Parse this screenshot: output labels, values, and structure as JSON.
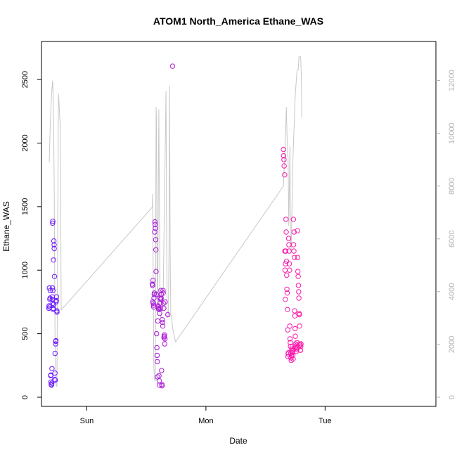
{
  "chart_data": {
    "type": "scatter",
    "title": "ATOM1 North_America Ethane_WAS",
    "xlabel": "Date",
    "ylabel": "Ethane_WAS",
    "x_tick_labels": [
      "Sun",
      "Mon",
      "Tue"
    ],
    "x_ticks_days": [
      1,
      2,
      3
    ],
    "xlim_days": [
      0.62,
      3.93
    ],
    "ylim": [
      0,
      2650
    ],
    "y_ticks": [
      0,
      500,
      1000,
      1500,
      2000,
      2500
    ],
    "y2lim": [
      0,
      13000
    ],
    "y2_ticks": [
      0,
      2000,
      4000,
      6000,
      8000,
      10000,
      12000
    ],
    "y2_label": "",
    "line_color": "#c8c8c8",
    "point_gradient": {
      "from": "#6a1aff",
      "to": "#ff1aa8"
    },
    "secondary_line": [
      [
        0.685,
        8900
      ],
      [
        0.695,
        10500
      ],
      [
        0.705,
        11500
      ],
      [
        0.713,
        12000
      ],
      [
        0.72,
        11200
      ],
      [
        0.727,
        8000
      ],
      [
        0.733,
        2500
      ],
      [
        0.74,
        500
      ],
      [
        0.75,
        400
      ],
      [
        0.757,
        7000
      ],
      [
        0.763,
        11500
      ],
      [
        0.769,
        11000
      ],
      [
        0.774,
        10500
      ],
      [
        0.778,
        10400
      ],
      [
        0.785,
        3300
      ],
      [
        1.55,
        7200
      ],
      [
        1.553,
        7700
      ],
      [
        1.557,
        5000
      ],
      [
        1.562,
        1300
      ],
      [
        1.567,
        700
      ],
      [
        1.575,
        600
      ],
      [
        1.582,
        11000
      ],
      [
        1.585,
        10500
      ],
      [
        1.59,
        5000
      ],
      [
        1.595,
        3300
      ],
      [
        1.605,
        10900
      ],
      [
        1.61,
        7000
      ],
      [
        1.615,
        3200
      ],
      [
        1.62,
        3000
      ],
      [
        1.64,
        3500
      ],
      [
        1.665,
        11600
      ],
      [
        1.67,
        6000
      ],
      [
        1.675,
        3000
      ],
      [
        1.685,
        3100
      ],
      [
        1.69,
        5500
      ],
      [
        1.695,
        11800
      ],
      [
        1.7,
        5500
      ],
      [
        1.705,
        3200
      ],
      [
        1.725,
        2500
      ],
      [
        1.745,
        2100
      ],
      [
        2.65,
        8000
      ],
      [
        2.665,
        9500
      ],
      [
        2.675,
        11000
      ],
      [
        2.68,
        10000
      ],
      [
        2.69,
        9000
      ],
      [
        2.695,
        6500
      ],
      [
        2.705,
        9500
      ],
      [
        2.71,
        6000
      ],
      [
        2.715,
        5500
      ],
      [
        2.73,
        9000
      ],
      [
        2.75,
        11500
      ],
      [
        2.76,
        12100
      ],
      [
        2.765,
        12400
      ],
      [
        2.775,
        12400
      ],
      [
        2.78,
        12900
      ],
      [
        2.79,
        12900
      ],
      [
        2.795,
        12900
      ],
      [
        2.8,
        12200
      ],
      [
        2.805,
        10600
      ]
    ],
    "series": [
      {
        "name": "Ethane_WAS",
        "points": [
          [
            0.682,
            700
          ],
          [
            0.684,
            720
          ],
          [
            0.686,
            860
          ],
          [
            0.688,
            710
          ],
          [
            0.69,
            770
          ],
          [
            0.692,
            780
          ],
          [
            0.694,
            840
          ],
          [
            0.697,
            170
          ],
          [
            0.699,
            175
          ],
          [
            0.7,
            120
          ],
          [
            0.702,
            100
          ],
          [
            0.704,
            95
          ],
          [
            0.706,
            110
          ],
          [
            0.708,
            225
          ],
          [
            0.71,
            770
          ],
          [
            0.711,
            790
          ],
          [
            0.712,
            860
          ],
          [
            0.713,
            1370
          ],
          [
            0.715,
            1385
          ],
          [
            0.716,
            840
          ],
          [
            0.717,
            740
          ],
          [
            0.719,
            700
          ],
          [
            0.72,
            690
          ],
          [
            0.721,
            1080
          ],
          [
            0.722,
            730
          ],
          [
            0.724,
            1230
          ],
          [
            0.726,
            1200
          ],
          [
            0.727,
            1170
          ],
          [
            0.729,
            950
          ],
          [
            0.731,
            140
          ],
          [
            0.733,
            190
          ],
          [
            0.734,
            345
          ],
          [
            0.736,
            135
          ],
          [
            0.738,
            420
          ],
          [
            0.74,
            440
          ],
          [
            0.741,
            445
          ],
          [
            0.743,
            750
          ],
          [
            0.745,
            760
          ],
          [
            0.747,
            790
          ],
          [
            0.749,
            680
          ],
          [
            0.75,
            670
          ],
          [
            1.55,
            890
          ],
          [
            1.552,
            880
          ],
          [
            1.554,
            750
          ],
          [
            1.556,
            920
          ],
          [
            1.558,
            740
          ],
          [
            1.56,
            725
          ],
          [
            1.562,
            710
          ],
          [
            1.564,
            780
          ],
          [
            1.566,
            810
          ],
          [
            1.568,
            820
          ],
          [
            1.57,
            1300
          ],
          [
            1.572,
            1380
          ],
          [
            1.574,
            1360
          ],
          [
            1.576,
            1330
          ],
          [
            1.578,
            1240
          ],
          [
            1.58,
            1160
          ],
          [
            1.582,
            990
          ],
          [
            1.584,
            810
          ],
          [
            1.586,
            500
          ],
          [
            1.588,
            390
          ],
          [
            1.59,
            330
          ],
          [
            1.592,
            280
          ],
          [
            1.594,
            160
          ],
          [
            1.596,
            600
          ],
          [
            1.598,
            720
          ],
          [
            1.6,
            710
          ],
          [
            1.602,
            700
          ],
          [
            1.604,
            690
          ],
          [
            1.606,
            170
          ],
          [
            1.608,
            130
          ],
          [
            1.61,
            95
          ],
          [
            1.612,
            660
          ],
          [
            1.614,
            780
          ],
          [
            1.616,
            740
          ],
          [
            1.618,
            700
          ],
          [
            1.62,
            770
          ],
          [
            1.622,
            840
          ],
          [
            1.624,
            780
          ],
          [
            1.626,
            810
          ],
          [
            1.628,
            210
          ],
          [
            1.63,
            100
          ],
          [
            1.632,
            90
          ],
          [
            1.634,
            610
          ],
          [
            1.636,
            590
          ],
          [
            1.638,
            560
          ],
          [
            1.64,
            840
          ],
          [
            1.642,
            820
          ],
          [
            1.644,
            740
          ],
          [
            1.646,
            700
          ],
          [
            1.648,
            470
          ],
          [
            1.65,
            480
          ],
          [
            1.652,
            490
          ],
          [
            1.654,
            420
          ],
          [
            1.656,
            460
          ],
          [
            1.658,
            750
          ],
          [
            1.68,
            650
          ],
          [
            1.72,
            2605
          ],
          [
            2.65,
            1950
          ],
          [
            2.652,
            1900
          ],
          [
            2.655,
            1870
          ],
          [
            2.657,
            1820
          ],
          [
            2.66,
            1750
          ],
          [
            2.662,
            1150
          ],
          [
            2.664,
            1000
          ],
          [
            2.666,
            770
          ],
          [
            2.668,
            1050
          ],
          [
            2.67,
            1150
          ],
          [
            2.672,
            1400
          ],
          [
            2.674,
            1300
          ],
          [
            2.676,
            1070
          ],
          [
            2.678,
            960
          ],
          [
            2.68,
            850
          ],
          [
            2.682,
            820
          ],
          [
            2.684,
            690
          ],
          [
            2.686,
            530
          ],
          [
            2.688,
            320
          ],
          [
            2.69,
            340
          ],
          [
            2.692,
            350
          ],
          [
            2.694,
            1250
          ],
          [
            2.696,
            1200
          ],
          [
            2.698,
            1150
          ],
          [
            2.7,
            1050
          ],
          [
            2.702,
            1000
          ],
          [
            2.704,
            560
          ],
          [
            2.706,
            460
          ],
          [
            2.708,
            430
          ],
          [
            2.71,
            400
          ],
          [
            2.712,
            350
          ],
          [
            2.714,
            310
          ],
          [
            2.716,
            290
          ],
          [
            2.718,
            330
          ],
          [
            2.72,
            380
          ],
          [
            2.722,
            350
          ],
          [
            2.724,
            400
          ],
          [
            2.726,
            370
          ],
          [
            2.728,
            360
          ],
          [
            2.73,
            330
          ],
          [
            2.732,
            300
          ],
          [
            2.734,
            1400
          ],
          [
            2.736,
            1200
          ],
          [
            2.738,
            1150
          ],
          [
            2.74,
            1300
          ],
          [
            2.742,
            1100
          ],
          [
            2.744,
            680
          ],
          [
            2.746,
            640
          ],
          [
            2.748,
            540
          ],
          [
            2.75,
            480
          ],
          [
            2.752,
            420
          ],
          [
            2.754,
            400
          ],
          [
            2.756,
            380
          ],
          [
            2.758,
            360
          ],
          [
            2.76,
            390
          ],
          [
            2.762,
            410
          ],
          [
            2.764,
            430
          ],
          [
            2.766,
            380
          ],
          [
            2.768,
            1310
          ],
          [
            2.77,
            1100
          ],
          [
            2.772,
            990
          ],
          [
            2.774,
            950
          ],
          [
            2.776,
            880
          ],
          [
            2.778,
            830
          ],
          [
            2.78,
            780
          ],
          [
            2.782,
            660
          ],
          [
            2.784,
            650
          ],
          [
            2.786,
            560
          ],
          [
            2.788,
            420
          ],
          [
            2.79,
            410
          ],
          [
            2.792,
            370
          ],
          [
            2.794,
            370
          ],
          [
            2.796,
            400
          ],
          [
            2.798,
            420
          ]
        ]
      }
    ]
  }
}
